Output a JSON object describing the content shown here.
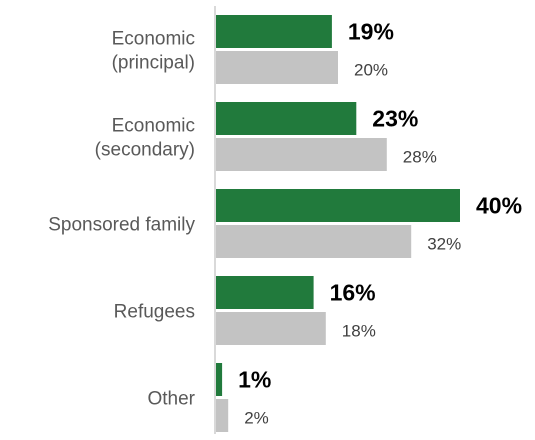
{
  "chart_data": {
    "type": "bar",
    "orientation": "horizontal",
    "categories": [
      [
        "Economic",
        "(principal)"
      ],
      [
        "Economic",
        "(secondary)"
      ],
      [
        "Sponsored family"
      ],
      [
        "Refugees"
      ],
      [
        "Other"
      ]
    ],
    "series": [
      {
        "color": "#217a3c",
        "values": [
          19,
          23,
          40,
          16,
          1
        ],
        "labels": [
          "19%",
          "23%",
          "40%",
          "16%",
          "1%"
        ],
        "label_style": "bold"
      },
      {
        "color": "#c3c3c3",
        "values": [
          20,
          28,
          32,
          18,
          2
        ],
        "labels": [
          "20%",
          "28%",
          "32%",
          "18%",
          "2%"
        ],
        "label_style": "normal"
      }
    ],
    "xlim": [
      0,
      40
    ],
    "grid": false,
    "legend": "none",
    "axis_line_color": "#d9d9d9"
  }
}
